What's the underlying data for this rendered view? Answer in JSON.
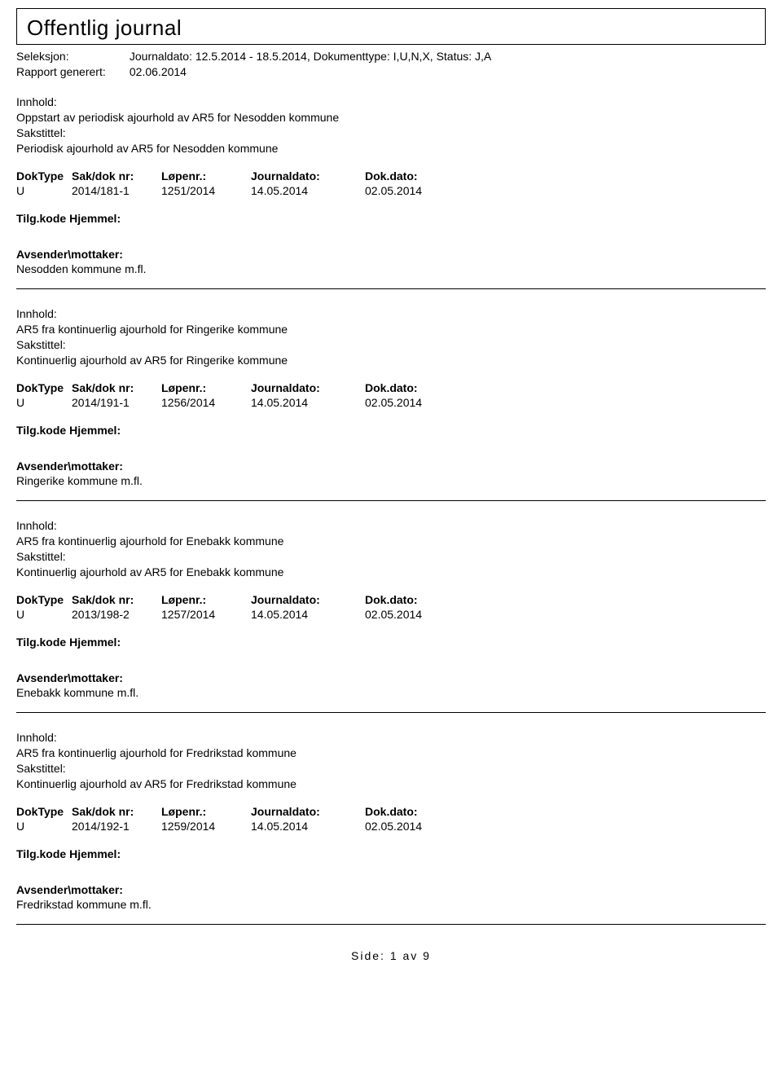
{
  "header": {
    "title": "Offentlig journal",
    "seleksjon_label": "Seleksjon:",
    "seleksjon_value": "Journaldato: 12.5.2014 - 18.5.2014, Dokumenttype: I,U,N,X, Status: J,A",
    "rapport_label": "Rapport generert:",
    "rapport_value": "02.06.2014"
  },
  "labels": {
    "innhold": "Innhold:",
    "sakstittel": "Sakstittel:",
    "doktype": "DokType",
    "sakdoknr": "Sak/dok nr:",
    "lopenr": "Løpenr.:",
    "journaldato": "Journaldato:",
    "dokdato": "Dok.dato:",
    "tilgkode": "Tilg.kode Hjemmel:",
    "avsender": "Avsender\\mottaker:"
  },
  "entries": [
    {
      "innhold_text": "Oppstart av periodisk ajourhold av AR5 for Nesodden kommune",
      "sakstittel_text": "Periodisk ajourhold av AR5 for Nesodden kommune",
      "doktype": "U",
      "sakdoknr": "2014/181-1",
      "lopenr": "1251/2014",
      "journaldato": "14.05.2014",
      "dokdato": "02.05.2014",
      "avsender_text": "Nesodden kommune m.fl."
    },
    {
      "innhold_text": "AR5 fra kontinuerlig ajourhold for Ringerike kommune",
      "sakstittel_text": "Kontinuerlig ajourhold av AR5 for Ringerike kommune",
      "doktype": "U",
      "sakdoknr": "2014/191-1",
      "lopenr": "1256/2014",
      "journaldato": "14.05.2014",
      "dokdato": "02.05.2014",
      "avsender_text": "Ringerike kommune m.fl."
    },
    {
      "innhold_text": "AR5 fra kontinuerlig ajourhold for Enebakk kommune",
      "sakstittel_text": "Kontinuerlig ajourhold av AR5 for Enebakk kommune",
      "doktype": "U",
      "sakdoknr": "2013/198-2",
      "lopenr": "1257/2014",
      "journaldato": "14.05.2014",
      "dokdato": "02.05.2014",
      "avsender_text": "Enebakk kommune m.fl."
    },
    {
      "innhold_text": "AR5 fra kontinuerlig ajourhold for Fredrikstad kommune",
      "sakstittel_text": "Kontinuerlig ajourhold av AR5 for Fredrikstad kommune",
      "doktype": "U",
      "sakdoknr": "2014/192-1",
      "lopenr": "1259/2014",
      "journaldato": "14.05.2014",
      "dokdato": "02.05.2014",
      "avsender_text": "Fredrikstad kommune m.fl."
    }
  ],
  "footer": {
    "text": "Side: 1 av 9"
  }
}
